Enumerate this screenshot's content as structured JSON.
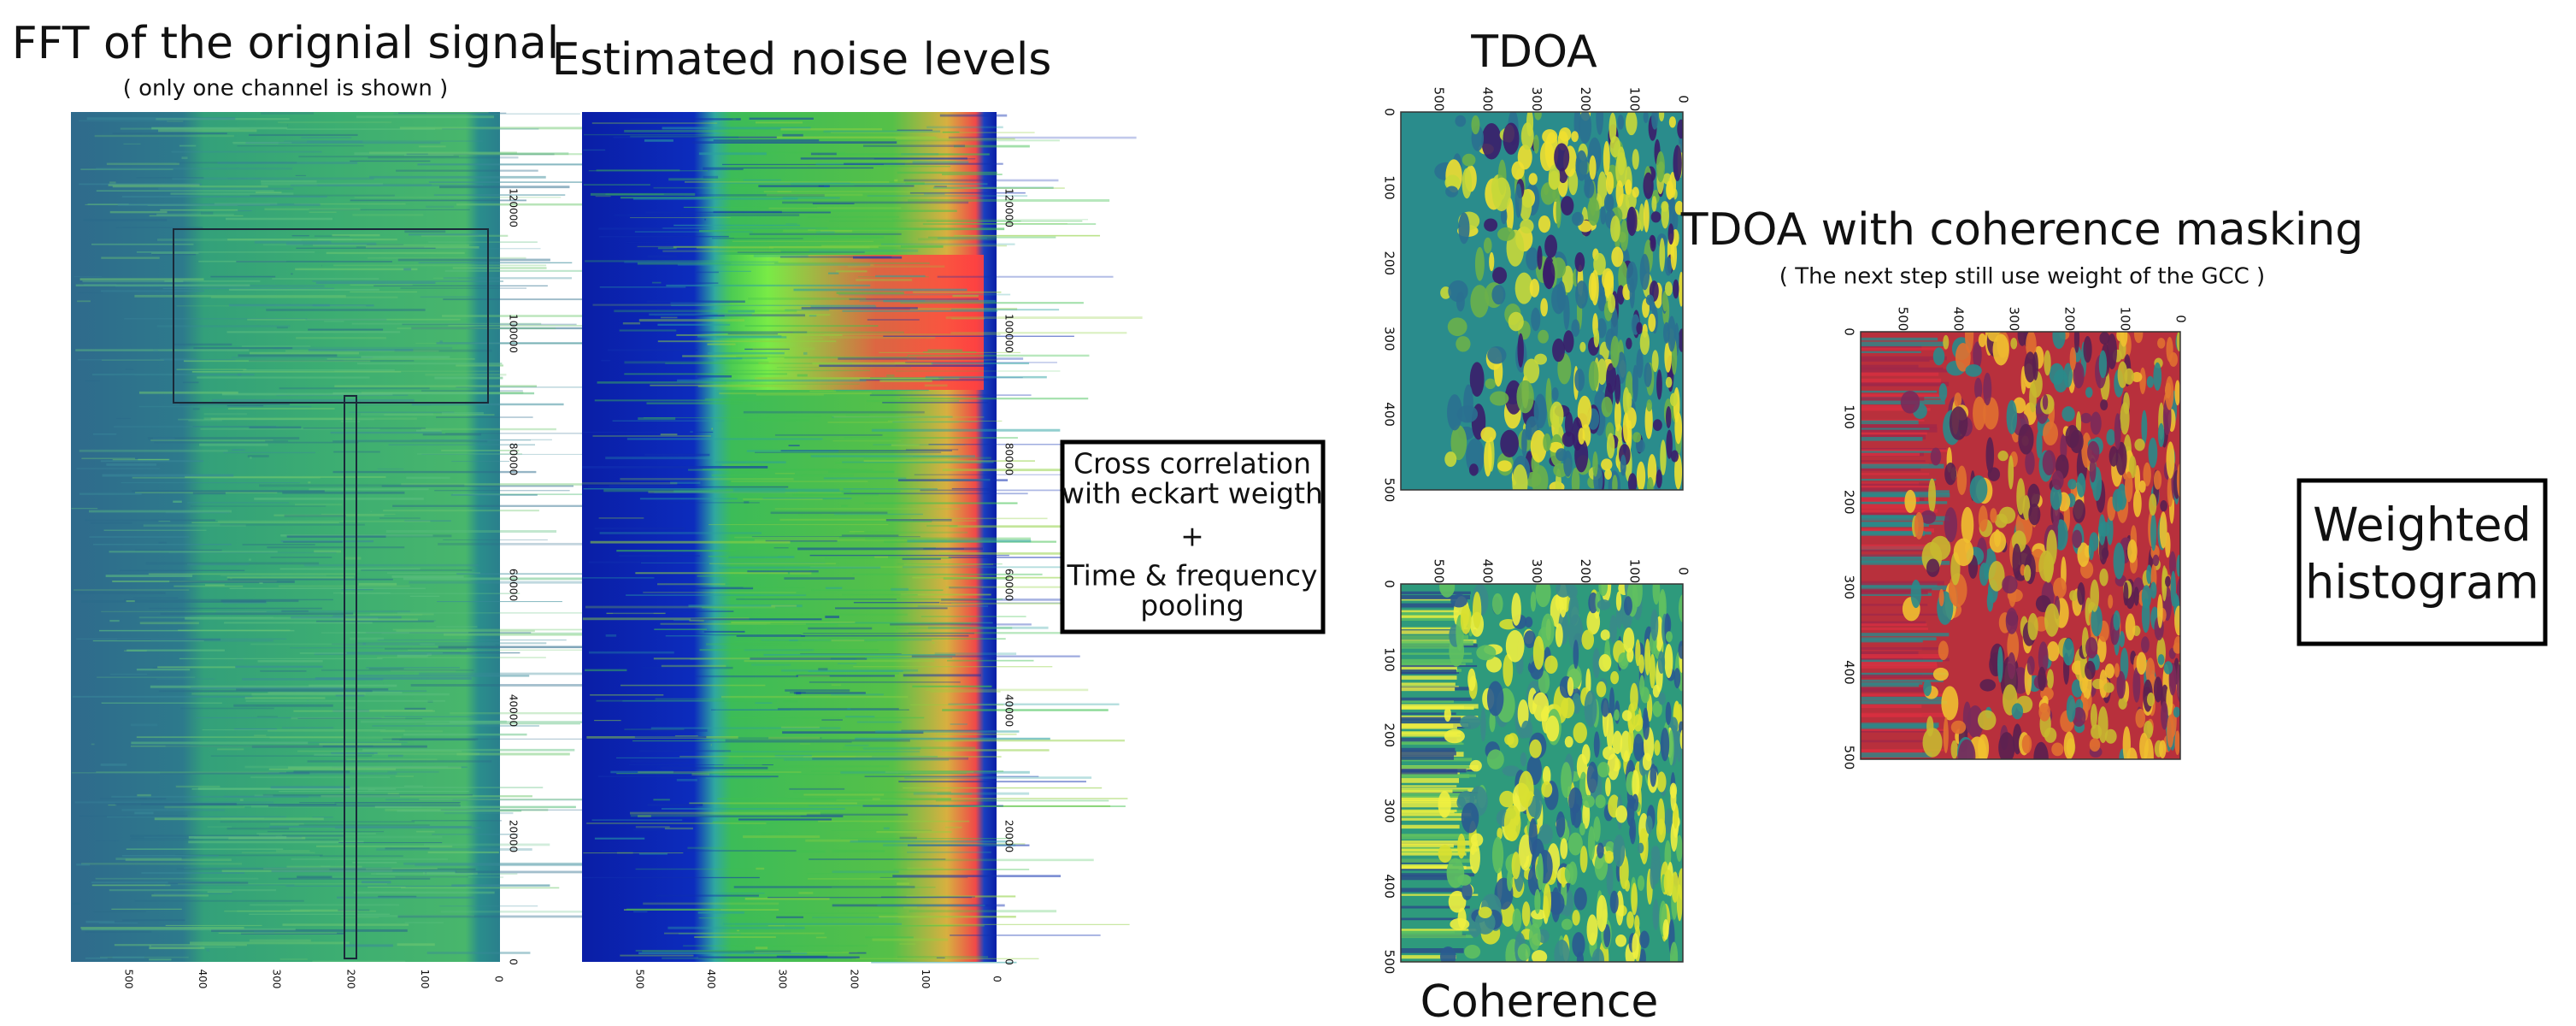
{
  "fft": {
    "title": "FFT of the orignial signal",
    "subtitle": "( only one channel is  shown )",
    "x_ticks": [
      500,
      400,
      300,
      200,
      100,
      0
    ],
    "y_ticks": [
      0,
      20000,
      40000,
      60000,
      80000,
      100000,
      120000
    ]
  },
  "noise": {
    "title": "Estimated noise levels",
    "x_ticks": [
      500,
      400,
      300,
      200,
      100,
      0
    ],
    "y_ticks": [
      0,
      20000,
      40000,
      60000,
      80000,
      100000,
      120000
    ]
  },
  "correlation_box": {
    "lines": [
      "Cross correlation",
      "with eckart weigth",
      "+",
      "Time & frequency",
      "pooling"
    ]
  },
  "tdoa": {
    "title": "TDOA",
    "top_ticks": [
      500,
      400,
      300,
      200,
      100,
      0
    ],
    "left_ticks": [
      0,
      100,
      200,
      300,
      400,
      500
    ]
  },
  "coherence": {
    "title": "Coherence",
    "top_ticks": [
      500,
      400,
      300,
      200,
      100,
      0
    ],
    "left_ticks": [
      0,
      100,
      200,
      300,
      400,
      500
    ]
  },
  "tdoa_masked": {
    "title": "TDOA with coherence masking",
    "subtitle": "( The next step still use weight of the GCC )",
    "top_ticks": [
      500,
      400,
      300,
      200,
      100,
      0
    ],
    "left_ticks": [
      0,
      100,
      200,
      300,
      400,
      500
    ]
  },
  "histogram_box": {
    "lines": [
      "Weighted",
      "histogram"
    ]
  }
}
